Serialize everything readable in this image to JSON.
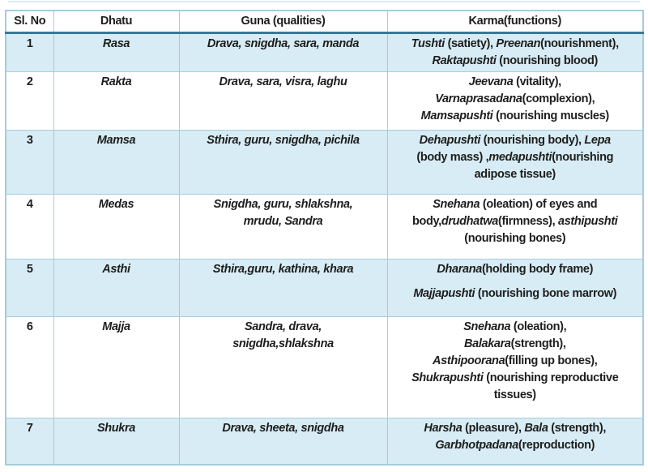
{
  "colors": {
    "row_shaded_bg": "#d7ecf4",
    "row_plain_bg": "#ffffff",
    "grid_border": "#a3cddd",
    "header_separator": "#3a7898",
    "text": "#1e1e1e"
  },
  "table": {
    "headers": [
      "Sl. No",
      "Dhatu",
      "Guna (qualities)",
      "Karma(functions)"
    ],
    "rows": [
      {
        "sl": "1",
        "dhatu": "Rasa",
        "guna": "Drava, snigdha, sara, manda",
        "karma": [
          [
            {
              "t": "Tushti ",
              "i": true
            },
            {
              "t": "(satiety), ",
              "i": false
            },
            {
              "t": "Preenan",
              "i": true
            },
            {
              "t": "(nourishment),\n",
              "i": false
            },
            {
              "t": "Raktapushti ",
              "i": true
            },
            {
              "t": "(nourishing blood)",
              "i": false
            }
          ]
        ]
      },
      {
        "sl": "2",
        "dhatu": "Rakta",
        "guna": "Drava, sara, visra, laghu",
        "karma": [
          [
            {
              "t": "Jeevana ",
              "i": true
            },
            {
              "t": "(vitality),\n",
              "i": false
            },
            {
              "t": "Varnaprasadana",
              "i": true
            },
            {
              "t": "(complexion),\n",
              "i": false
            },
            {
              "t": "Mamsapushti ",
              "i": true
            },
            {
              "t": "(nourishing muscles)",
              "i": false
            }
          ]
        ]
      },
      {
        "sl": "3",
        "dhatu": "Mamsa",
        "guna": "Sthira, guru, snigdha, pichila",
        "karma": [
          [
            {
              "t": "Dehapushti ",
              "i": true
            },
            {
              "t": "(nourishing body), ",
              "i": false
            },
            {
              "t": "Lepa",
              "i": true
            },
            {
              "t": "\n(body mass) ,",
              "i": false
            },
            {
              "t": "medapushti",
              "i": true
            },
            {
              "t": "(nourishing\nadipose tissue)",
              "i": false
            }
          ]
        ]
      },
      {
        "sl": "4",
        "dhatu": "Medas",
        "guna": "Snigdha, guru, shlakshna,\nmrudu, Sandra",
        "karma": [
          [
            {
              "t": "Snehana ",
              "i": true
            },
            {
              "t": "(oleation) of eyes and\nbody,",
              "i": false
            },
            {
              "t": "drudhatwa",
              "i": true
            },
            {
              "t": "(firmness), ",
              "i": false
            },
            {
              "t": "asthipushti",
              "i": true
            },
            {
              "t": "\n(nourishing bones)",
              "i": false
            }
          ]
        ]
      },
      {
        "sl": "5",
        "dhatu": "Asthi",
        "guna": "Sthira,guru, kathina, khara",
        "karma": [
          [
            {
              "t": "Dharana",
              "i": true
            },
            {
              "t": "(holding body frame)",
              "i": false
            }
          ],
          [
            {
              "t": "Majjapushti ",
              "i": true
            },
            {
              "t": "(nourishing bone marrow)",
              "i": false
            }
          ]
        ]
      },
      {
        "sl": "6",
        "dhatu": "Majja",
        "guna": "Sandra, drava,\nsnigdha,shlakshna",
        "karma": [
          [
            {
              "t": "Snehana ",
              "i": true
            },
            {
              "t": "(oleation),\n",
              "i": false
            },
            {
              "t": "Balakara",
              "i": true
            },
            {
              "t": "(strength),\n",
              "i": false
            },
            {
              "t": "Asthipoorana",
              "i": true
            },
            {
              "t": "(filling up bones),\n",
              "i": false
            },
            {
              "t": "Shukrapushti ",
              "i": true
            },
            {
              "t": "(nourishing reproductive\ntissues)",
              "i": false
            }
          ]
        ]
      },
      {
        "sl": "7",
        "dhatu": "Shukra",
        "guna": "Drava, sheeta, snigdha",
        "karma": [
          [
            {
              "t": "Harsha ",
              "i": true
            },
            {
              "t": "(pleasure), ",
              "i": false
            },
            {
              "t": "Bala ",
              "i": true
            },
            {
              "t": "(strength),\n",
              "i": false
            },
            {
              "t": "Garbhotpadana",
              "i": true
            },
            {
              "t": "(reproduction)",
              "i": false
            }
          ]
        ]
      }
    ]
  }
}
